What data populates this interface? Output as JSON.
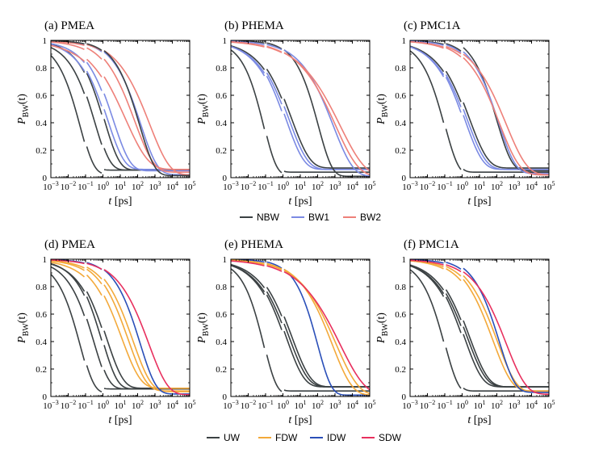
{
  "chart_data": [
    {
      "type": "line",
      "panel": "(a)",
      "title": "(a) PMEA",
      "xscale": "log",
      "xlim": [
        0.001,
        100000
      ],
      "ylim": [
        0,
        1
      ],
      "yticks": [
        "0",
        "0.2",
        "0.4",
        "0.6",
        "0.8",
        "1"
      ],
      "series": [
        {
          "group": "NBW",
          "tau": 0.05,
          "beta": 0.55,
          "jumps": [
            {
              "x": 0.1,
              "dy": 0.025
            },
            {
              "x": 1.0,
              "dy": 0.03
            }
          ]
        },
        {
          "group": "NBW",
          "tau": 0.35,
          "beta": 0.5,
          "jumps": [
            {
              "x": 0.1,
              "dy": 0.03
            },
            {
              "x": 1.0,
              "dy": 0.025
            }
          ]
        },
        {
          "group": "NBW",
          "tau": 1.2,
          "beta": 0.5,
          "jumps": [
            {
              "x": 0.1,
              "dy": 0.03
            },
            {
              "x": 1.0,
              "dy": 0.025
            }
          ]
        },
        {
          "group": "BW1",
          "tau": 1.8,
          "beta": 0.45,
          "jumps": [
            {
              "x": 0.1,
              "dy": 0.03
            },
            {
              "x": 1.0,
              "dy": 0.03
            }
          ]
        },
        {
          "group": "BW1",
          "tau": 4.0,
          "beta": 0.45,
          "jumps": [
            {
              "x": 0.1,
              "dy": 0.025
            },
            {
              "x": 1.0,
              "dy": 0.025
            }
          ]
        },
        {
          "group": "BW1",
          "tau": 150,
          "beta": 0.45,
          "jumps": [
            {
              "x": 0.1,
              "dy": 0.01
            },
            {
              "x": 1.0,
              "dy": 0.012
            }
          ]
        },
        {
          "group": "BW2",
          "tau": 20,
          "beta": 0.33,
          "jumps": [
            {
              "x": 0.1,
              "dy": 0.03
            },
            {
              "x": 1.0,
              "dy": 0.03
            }
          ]
        },
        {
          "group": "BW2",
          "tau": 70,
          "beta": 0.4,
          "jumps": [
            {
              "x": 0.1,
              "dy": 0.02
            },
            {
              "x": 1.0,
              "dy": 0.02
            }
          ]
        },
        {
          "group": "BW2",
          "tau": 500,
          "beta": 0.38,
          "jumps": [
            {
              "x": 0.1,
              "dy": 0.01
            },
            {
              "x": 1.0,
              "dy": 0.01
            }
          ]
        },
        {
          "group": "NBW",
          "tau": 130,
          "beta": 0.5,
          "jumps": [
            {
              "x": 0.1,
              "dy": 0.005
            },
            {
              "x": 1.0,
              "dy": 0.01
            }
          ]
        }
      ]
    },
    {
      "type": "line",
      "panel": "(b)",
      "title": "(b) PHEMA",
      "xscale": "log",
      "xlim": [
        0.001,
        100000
      ],
      "ylim": [
        0,
        1
      ],
      "yticks": [
        "0",
        "0.2",
        "0.4",
        "0.6",
        "0.8",
        "1"
      ],
      "series": [
        {
          "group": "NBW",
          "tau": 0.08,
          "beta": 0.6,
          "jumps": [
            {
              "x": 0.1,
              "dy": 0.02
            },
            {
              "x": 1.0,
              "dy": 0.02
            }
          ]
        },
        {
          "group": "NBW",
          "tau": 3.0,
          "beta": 0.4,
          "jumps": [
            {
              "x": 0.1,
              "dy": 0.03
            },
            {
              "x": 1.0,
              "dy": 0.04
            }
          ]
        },
        {
          "group": "BW1",
          "tau": 1.5,
          "beta": 0.42,
          "jumps": [
            {
              "x": 0.1,
              "dy": 0.03
            },
            {
              "x": 1.0,
              "dy": 0.03
            }
          ]
        },
        {
          "group": "BW1",
          "tau": 2.2,
          "beta": 0.4,
          "jumps": [
            {
              "x": 0.1,
              "dy": 0.03
            },
            {
              "x": 1.0,
              "dy": 0.03
            }
          ]
        },
        {
          "group": "NBW",
          "tau": 110,
          "beta": 0.55,
          "jumps": [
            {
              "x": 0.1,
              "dy": 0.004
            },
            {
              "x": 1.0,
              "dy": 0.006
            }
          ]
        },
        {
          "group": "BW1",
          "tau": 800,
          "beta": 0.38,
          "jumps": [
            {
              "x": 0.1,
              "dy": 0.004
            },
            {
              "x": 1.0,
              "dy": 0.006
            }
          ]
        },
        {
          "group": "BW2",
          "tau": 1100,
          "beta": 0.33,
          "jumps": [
            {
              "x": 0.1,
              "dy": 0.004
            },
            {
              "x": 1.0,
              "dy": 0.006
            }
          ]
        },
        {
          "group": "BW2",
          "tau": 2000,
          "beta": 0.3,
          "jumps": [
            {
              "x": 0.1,
              "dy": 0.004
            },
            {
              "x": 1.0,
              "dy": 0.006
            }
          ]
        }
      ]
    },
    {
      "type": "line",
      "panel": "(c)",
      "title": "(c) PMC1A",
      "xscale": "log",
      "xlim": [
        0.001,
        100000
      ],
      "ylim": [
        0,
        1
      ],
      "yticks": [
        "0",
        "0.2",
        "0.4",
        "0.6",
        "0.8",
        "1"
      ],
      "series": [
        {
          "group": "NBW",
          "tau": 0.1,
          "beta": 0.55,
          "jumps": [
            {
              "x": 0.1,
              "dy": 0.02
            },
            {
              "x": 1.0,
              "dy": 0.02
            }
          ]
        },
        {
          "group": "NBW",
          "tau": 2.5,
          "beta": 0.4,
          "jumps": [
            {
              "x": 0.1,
              "dy": 0.03
            },
            {
              "x": 1.0,
              "dy": 0.04
            }
          ]
        },
        {
          "group": "BW1",
          "tau": 1.4,
          "beta": 0.42,
          "jumps": [
            {
              "x": 0.1,
              "dy": 0.03
            },
            {
              "x": 1.0,
              "dy": 0.03
            }
          ]
        },
        {
          "group": "BW1",
          "tau": 1.9,
          "beta": 0.4,
          "jumps": [
            {
              "x": 0.1,
              "dy": 0.03
            },
            {
              "x": 1.0,
              "dy": 0.03
            }
          ]
        },
        {
          "group": "NBW",
          "tau": 100,
          "beta": 0.5,
          "jumps": [
            {
              "x": 0.1,
              "dy": 0.01
            },
            {
              "x": 1.0,
              "dy": 0.04
            }
          ]
        },
        {
          "group": "BW1",
          "tau": 130,
          "beta": 0.45,
          "jumps": [
            {
              "x": 0.1,
              "dy": 0.01
            },
            {
              "x": 1.0,
              "dy": 0.02
            }
          ]
        },
        {
          "group": "BW2",
          "tau": 150,
          "beta": 0.38,
          "jumps": [
            {
              "x": 0.1,
              "dy": 0.01
            },
            {
              "x": 1.0,
              "dy": 0.01
            }
          ]
        },
        {
          "group": "BW2",
          "tau": 350,
          "beta": 0.36,
          "jumps": [
            {
              "x": 0.1,
              "dy": 0.01
            },
            {
              "x": 1.0,
              "dy": 0.01
            }
          ]
        }
      ]
    },
    {
      "type": "line",
      "panel": "(d)",
      "title": "(d) PMEA",
      "xscale": "log",
      "xlim": [
        0.001,
        100000
      ],
      "ylim": [
        0,
        1
      ],
      "yticks": [
        "0",
        "0.2",
        "0.4",
        "0.6",
        "0.8",
        "1"
      ],
      "series": [
        {
          "group": "UW",
          "tau": 0.05,
          "beta": 0.55,
          "jumps": [
            {
              "x": 0.1,
              "dy": 0.025
            },
            {
              "x": 1.0,
              "dy": 0.03
            }
          ]
        },
        {
          "group": "UW",
          "tau": 0.3,
          "beta": 0.5,
          "jumps": [
            {
              "x": 0.1,
              "dy": 0.03
            },
            {
              "x": 1.0,
              "dy": 0.025
            }
          ]
        },
        {
          "group": "UW",
          "tau": 0.9,
          "beta": 0.5,
          "jumps": [
            {
              "x": 0.1,
              "dy": 0.03
            },
            {
              "x": 1.0,
              "dy": 0.025
            }
          ]
        },
        {
          "group": "UW",
          "tau": 1.6,
          "beta": 0.45,
          "jumps": [
            {
              "x": 0.1,
              "dy": 0.03
            },
            {
              "x": 1.0,
              "dy": 0.03
            }
          ]
        },
        {
          "group": "FDW",
          "tau": 12,
          "beta": 0.4,
          "jumps": [
            {
              "x": 0.1,
              "dy": 0.03
            },
            {
              "x": 1.0,
              "dy": 0.03
            }
          ]
        },
        {
          "group": "FDW",
          "tau": 30,
          "beta": 0.42,
          "jumps": [
            {
              "x": 0.1,
              "dy": 0.02
            },
            {
              "x": 1.0,
              "dy": 0.02
            }
          ]
        },
        {
          "group": "FDW",
          "tau": 55,
          "beta": 0.42,
          "jumps": [
            {
              "x": 0.1,
              "dy": 0.015
            },
            {
              "x": 1.0,
              "dy": 0.02
            }
          ]
        },
        {
          "group": "IDW",
          "tau": 140,
          "beta": 0.48,
          "jumps": [
            {
              "x": 0.1,
              "dy": 0.008
            },
            {
              "x": 1.0,
              "dy": 0.01
            }
          ]
        },
        {
          "group": "SDW",
          "tau": 450,
          "beta": 0.4,
          "jumps": [
            {
              "x": 0.1,
              "dy": 0.005
            },
            {
              "x": 1.0,
              "dy": 0.008
            }
          ]
        }
      ]
    },
    {
      "type": "line",
      "panel": "(e)",
      "title": "(e) PHEMA",
      "xscale": "log",
      "xlim": [
        0.001,
        100000
      ],
      "ylim": [
        0,
        1
      ],
      "yticks": [
        "0",
        "0.2",
        "0.4",
        "0.6",
        "0.8",
        "1"
      ],
      "series": [
        {
          "group": "UW",
          "tau": 0.08,
          "beta": 0.6,
          "jumps": [
            {
              "x": 0.1,
              "dy": 0.02
            },
            {
              "x": 1.0,
              "dy": 0.02
            }
          ]
        },
        {
          "group": "UW",
          "tau": 1.5,
          "beta": 0.42,
          "jumps": [
            {
              "x": 0.1,
              "dy": 0.03
            },
            {
              "x": 1.0,
              "dy": 0.04
            }
          ]
        },
        {
          "group": "UW",
          "tau": 2.2,
          "beta": 0.4,
          "jumps": [
            {
              "x": 0.1,
              "dy": 0.03
            },
            {
              "x": 1.0,
              "dy": 0.04
            }
          ]
        },
        {
          "group": "UW",
          "tau": 3.2,
          "beta": 0.4,
          "jumps": [
            {
              "x": 0.1,
              "dy": 0.03
            },
            {
              "x": 1.0,
              "dy": 0.04
            }
          ]
        },
        {
          "group": "IDW",
          "tau": 100,
          "beta": 0.55,
          "jumps": [
            {
              "x": 0.1,
              "dy": 0.004
            },
            {
              "x": 1.0,
              "dy": 0.006
            }
          ]
        },
        {
          "group": "FDW",
          "tau": 700,
          "beta": 0.38,
          "jumps": [
            {
              "x": 0.1,
              "dy": 0.004
            },
            {
              "x": 1.0,
              "dy": 0.006
            }
          ]
        },
        {
          "group": "FDW",
          "tau": 1200,
          "beta": 0.34,
          "jumps": [
            {
              "x": 0.1,
              "dy": 0.004
            },
            {
              "x": 1.0,
              "dy": 0.006
            }
          ]
        },
        {
          "group": "SDW",
          "tau": 2000,
          "beta": 0.3,
          "jumps": [
            {
              "x": 0.1,
              "dy": 0.004
            },
            {
              "x": 1.0,
              "dy": 0.006
            }
          ]
        }
      ]
    },
    {
      "type": "line",
      "panel": "(f)",
      "title": "(f) PMC1A",
      "xscale": "log",
      "xlim": [
        0.001,
        100000
      ],
      "ylim": [
        0,
        1
      ],
      "yticks": [
        "0",
        "0.2",
        "0.4",
        "0.6",
        "0.8",
        "1"
      ],
      "series": [
        {
          "group": "UW",
          "tau": 0.1,
          "beta": 0.55,
          "jumps": [
            {
              "x": 0.1,
              "dy": 0.02
            },
            {
              "x": 1.0,
              "dy": 0.02
            }
          ]
        },
        {
          "group": "UW",
          "tau": 1.3,
          "beta": 0.42,
          "jumps": [
            {
              "x": 0.1,
              "dy": 0.03
            },
            {
              "x": 1.0,
              "dy": 0.04
            }
          ]
        },
        {
          "group": "UW",
          "tau": 1.9,
          "beta": 0.4,
          "jumps": [
            {
              "x": 0.1,
              "dy": 0.03
            },
            {
              "x": 1.0,
              "dy": 0.04
            }
          ]
        },
        {
          "group": "UW",
          "tau": 2.6,
          "beta": 0.4,
          "jumps": [
            {
              "x": 0.1,
              "dy": 0.03
            },
            {
              "x": 1.0,
              "dy": 0.04
            }
          ]
        },
        {
          "group": "FDW",
          "tau": 60,
          "beta": 0.4,
          "jumps": [
            {
              "x": 0.1,
              "dy": 0.01
            },
            {
              "x": 1.0,
              "dy": 0.03
            }
          ]
        },
        {
          "group": "FDW",
          "tau": 110,
          "beta": 0.4,
          "jumps": [
            {
              "x": 0.1,
              "dy": 0.01
            },
            {
              "x": 1.0,
              "dy": 0.02
            }
          ]
        },
        {
          "group": "IDW",
          "tau": 140,
          "beta": 0.48,
          "jumps": [
            {
              "x": 0.1,
              "dy": 0.01
            },
            {
              "x": 1.0,
              "dy": 0.02
            }
          ]
        },
        {
          "group": "SDW",
          "tau": 350,
          "beta": 0.38,
          "jumps": [
            {
              "x": 0.1,
              "dy": 0.006
            },
            {
              "x": 1.0,
              "dy": 0.01
            }
          ]
        }
      ]
    }
  ],
  "legends": [
    {
      "entries": [
        {
          "label": "NBW",
          "color": "#3b4143"
        },
        {
          "label": "BW1",
          "color": "#7b8ae3"
        },
        {
          "label": "BW2",
          "color": "#ee8079"
        }
      ]
    },
    {
      "entries": [
        {
          "label": "UW",
          "color": "#3b4143"
        },
        {
          "label": "FDW",
          "color": "#f3a93a"
        },
        {
          "label": "IDW",
          "color": "#2a4fb8"
        },
        {
          "label": "SDW",
          "color": "#e8305e"
        }
      ]
    }
  ],
  "colors": {
    "NBW": "#3b4143",
    "BW1": "#7b8ae3",
    "BW2": "#ee8079",
    "UW": "#3b4143",
    "FDW": "#f3a93a",
    "IDW": "#2a4fb8",
    "SDW": "#e8305e"
  },
  "axes": {
    "xlabel_var": "t",
    "xlabel_unit": "[ps]",
    "ylabel_var": "P",
    "ylabel_sub": "BW",
    "ylabel_arg": "(t)",
    "x_tick_base": "10"
  }
}
